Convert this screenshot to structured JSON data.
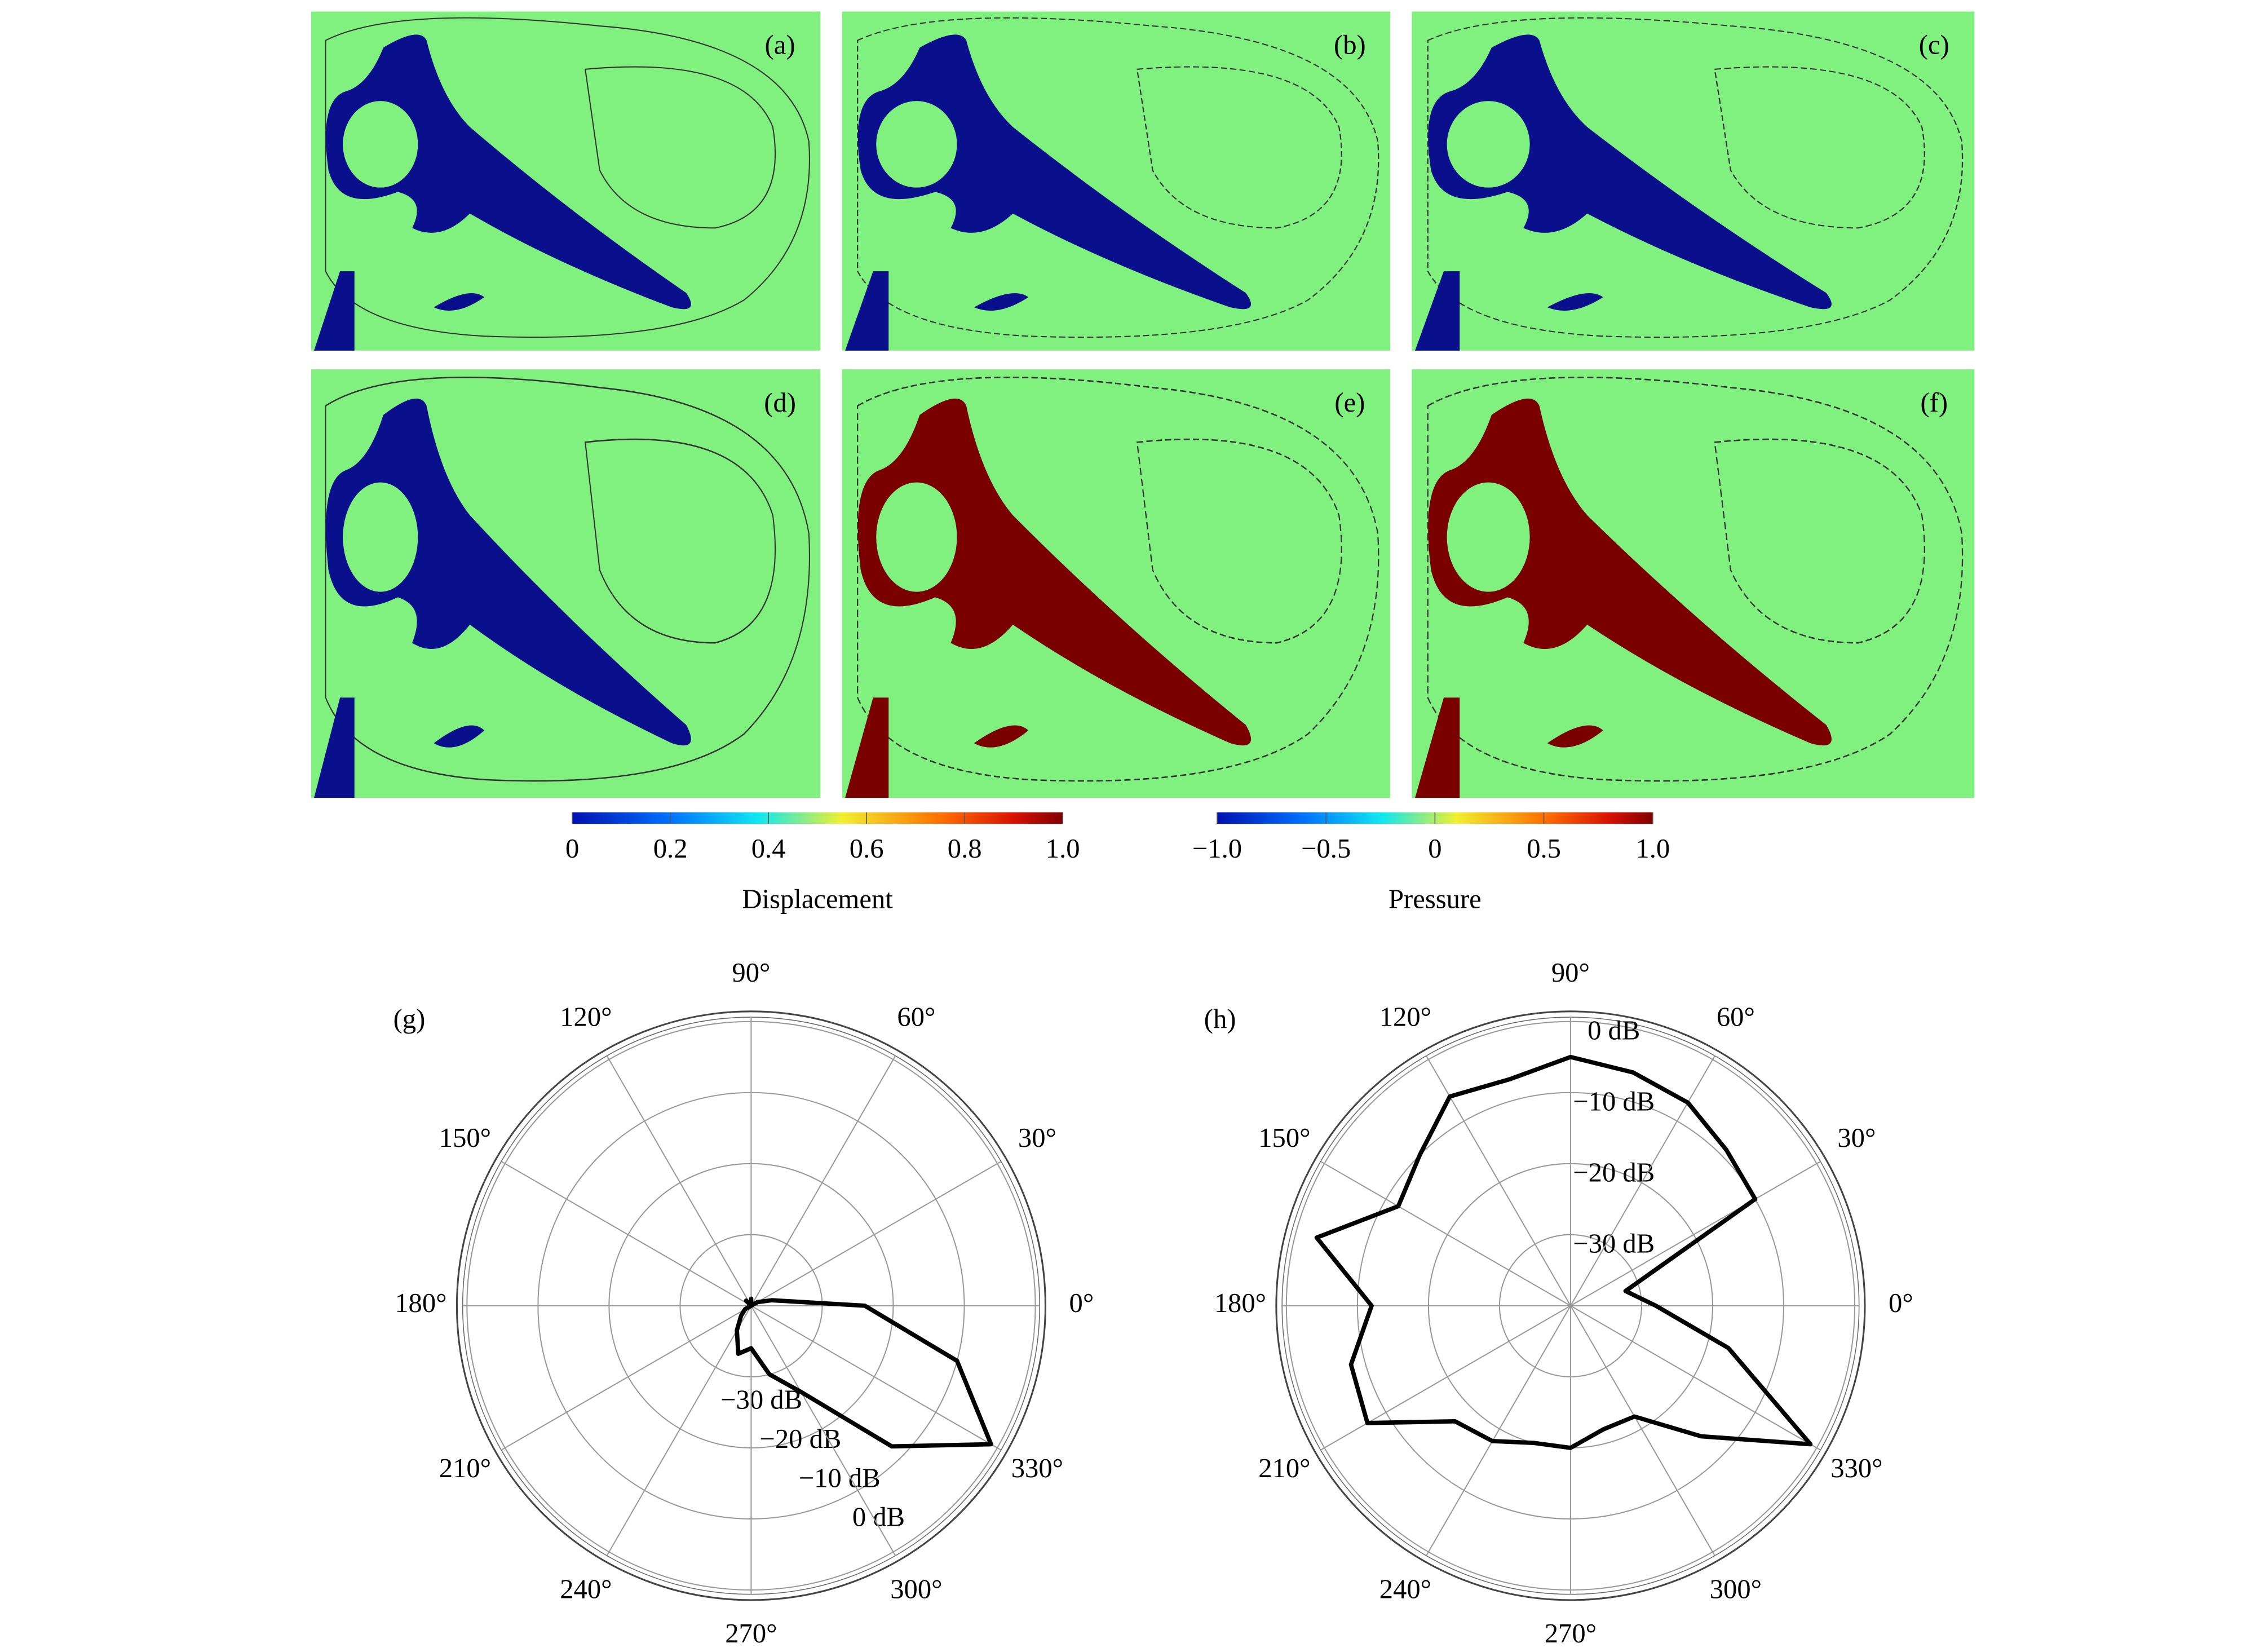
{
  "panels": [
    {
      "label": "(a)"
    },
    {
      "label": "(b)"
    },
    {
      "label": "(c)"
    },
    {
      "label": "(d)"
    },
    {
      "label": "(e)"
    },
    {
      "label": "(f)"
    }
  ],
  "colorbars": [
    {
      "label": "Displacement",
      "lim": [
        0,
        1
      ],
      "ticks": [
        0,
        0.2,
        0.4,
        0.6,
        0.8,
        {
          "value": 1,
          "label": "1.0"
        }
      ]
    },
    {
      "label": "Pressure",
      "lim": [
        -1,
        1
      ],
      "ticks": [
        {
          "value": -1,
          "label": "−1.0"
        },
        {
          "value": -0.5,
          "label": "−0.5"
        },
        0,
        0.5,
        {
          "value": 1,
          "label": "1.0"
        }
      ]
    }
  ],
  "chart_data": [
    {
      "type": "polar",
      "label": "(g)",
      "color": "#000000",
      "angle_ticks": [
        {
          "value": 0,
          "label": "0°"
        },
        {
          "value": 30,
          "label": "30°"
        },
        {
          "value": 60,
          "label": "60°"
        },
        {
          "value": 90,
          "label": "90°"
        },
        {
          "value": 120,
          "label": "120°"
        },
        {
          "value": 150,
          "label": "150°"
        },
        {
          "value": 180,
          "label": "180°"
        },
        {
          "value": 210,
          "label": "210°"
        },
        {
          "value": 240,
          "label": "240°"
        },
        {
          "value": 270,
          "label": "270°"
        },
        {
          "value": 300,
          "label": "300°"
        },
        {
          "value": 330,
          "label": "330°"
        }
      ],
      "rlim": [
        -40,
        0
      ],
      "rticks": [
        {
          "value": -30,
          "label": "−30 dB"
        },
        {
          "value": -20,
          "label": "−20 dB"
        },
        {
          "value": -10,
          "label": "−10 dB"
        },
        {
          "value": 0,
          "label": "0 dB"
        }
      ],
      "theta": [
        0,
        15,
        30,
        45,
        60,
        75,
        90,
        105,
        120,
        135,
        150,
        165,
        180,
        195,
        210,
        225,
        240,
        255,
        270,
        285,
        300,
        315,
        330,
        345
      ],
      "values": [
        -24,
        -37,
        -39,
        -40,
        -40,
        -40,
        -39,
        -40,
        -40,
        -39,
        -40,
        -40,
        -40,
        -40,
        -39,
        -38,
        -36,
        -33,
        -34,
        -30,
        -26,
        -12,
        -1,
        -10
      ]
    },
    {
      "type": "polar",
      "label": "(h)",
      "color": "#000000",
      "angle_ticks": [
        {
          "value": 0,
          "label": "0°"
        },
        {
          "value": 30,
          "label": "30°"
        },
        {
          "value": 60,
          "label": "60°"
        },
        {
          "value": 90,
          "label": "90°"
        },
        {
          "value": 120,
          "label": "120°"
        },
        {
          "value": 150,
          "label": "150°"
        },
        {
          "value": 180,
          "label": "180°"
        },
        {
          "value": 210,
          "label": "210°"
        },
        {
          "value": 240,
          "label": "240°"
        },
        {
          "value": 270,
          "label": "270°"
        },
        {
          "value": 300,
          "label": "300°"
        },
        {
          "value": 330,
          "label": "330°"
        }
      ],
      "rlim": [
        -40,
        0
      ],
      "rticks": [
        {
          "value": -30,
          "label": "−30 dB"
        },
        {
          "value": -20,
          "label": "−20 dB"
        },
        {
          "value": -10,
          "label": "−10 dB"
        },
        {
          "value": 0,
          "label": "0 dB"
        }
      ],
      "theta": [
        0,
        15,
        30,
        45,
        60,
        75,
        90,
        105,
        120,
        135,
        150,
        165,
        180,
        195,
        210,
        225,
        240,
        255,
        270,
        285,
        300,
        315,
        330,
        345
      ],
      "values": [
        -28,
        -32,
        -10,
        -9,
        -7,
        -6,
        -5,
        -7,
        -6,
        -10,
        -12,
        -3,
        -12,
        -8,
        -7,
        -17,
        -18,
        -20,
        -20,
        -22,
        -22,
        -14,
        -1,
        -17
      ]
    }
  ]
}
